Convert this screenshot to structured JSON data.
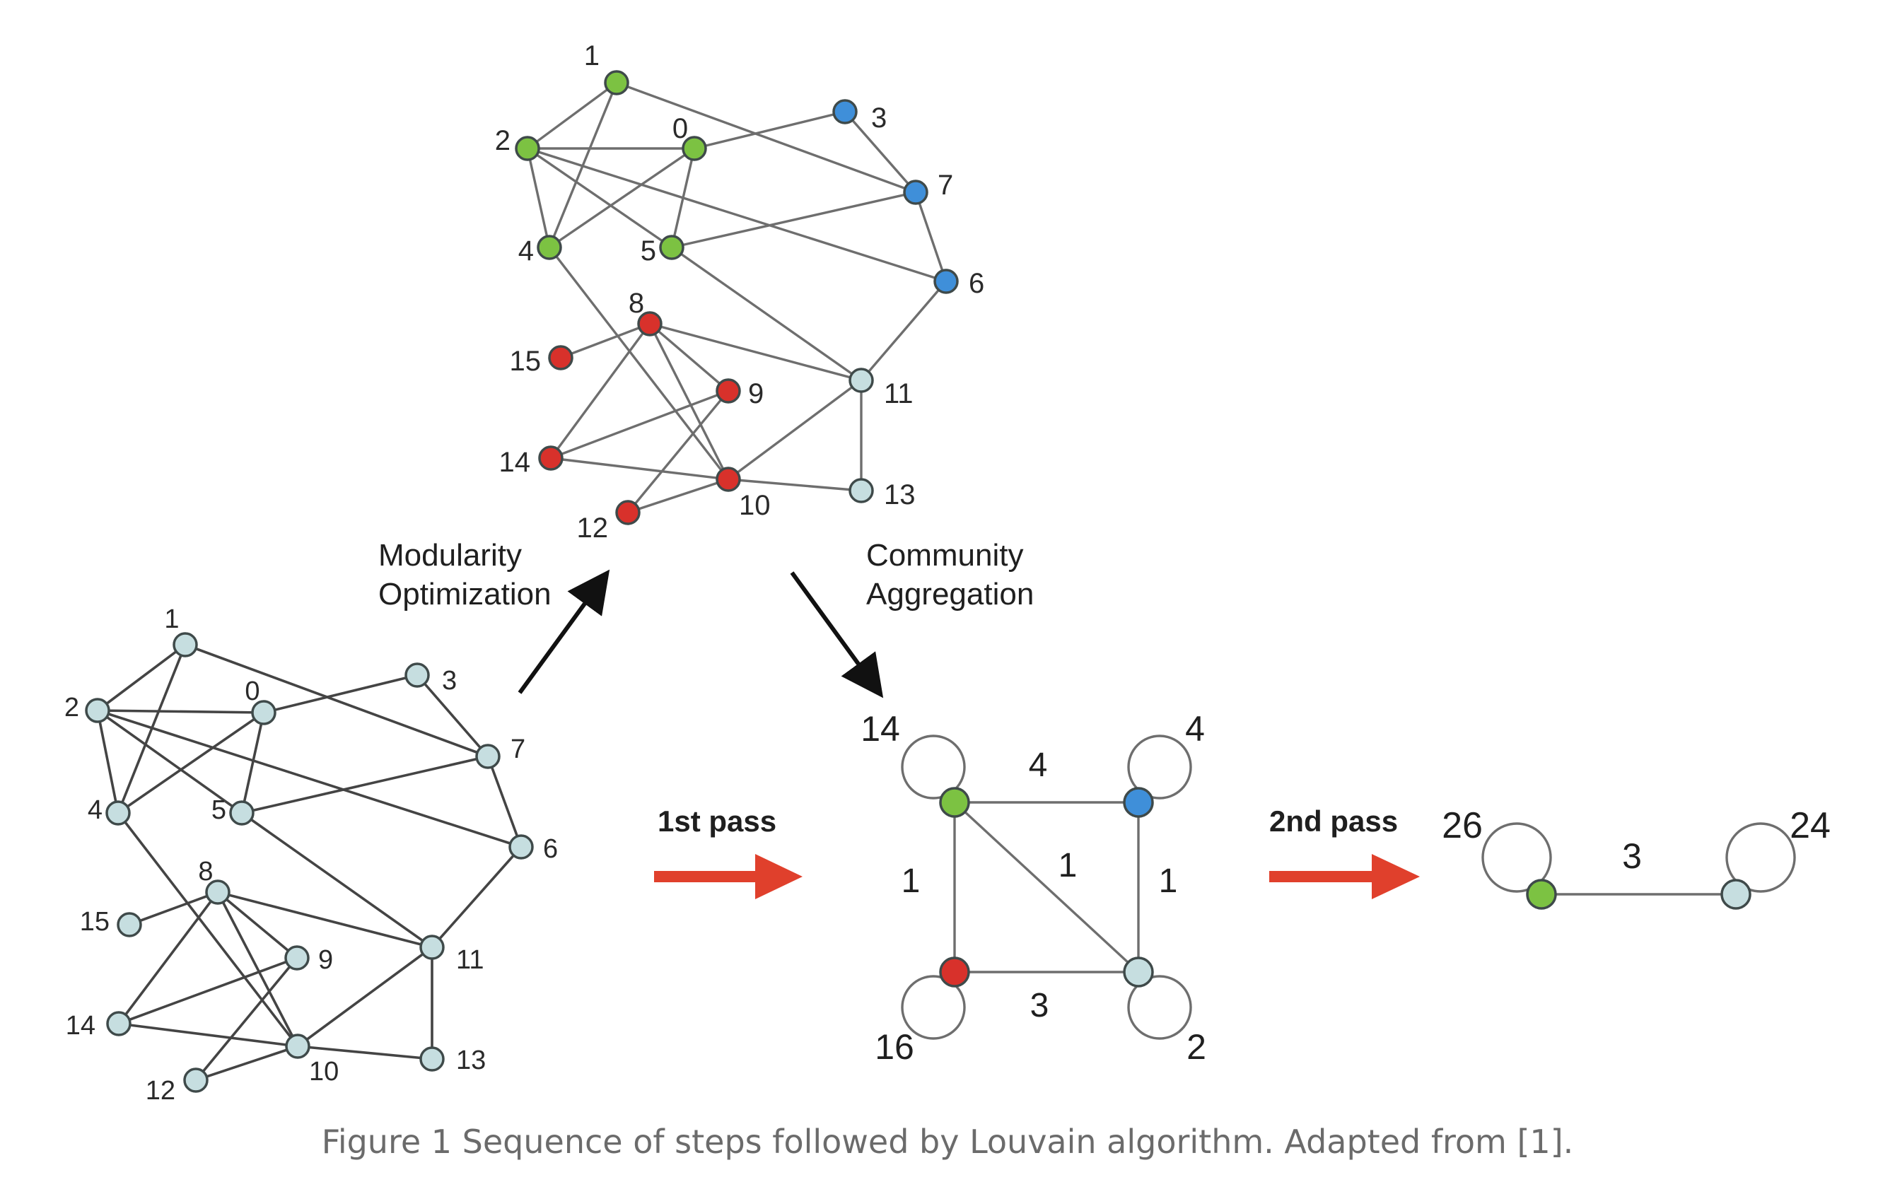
{
  "colors": {
    "green": "#7cc242",
    "blue": "#3f8fd9",
    "red": "#d8312b",
    "light": "#c6dee0",
    "arrow_red": "#e0402c",
    "arrow_dark": "#111111",
    "caption": "#6b6b6b"
  },
  "graph_nodes": [
    {
      "id": "0",
      "label": "0"
    },
    {
      "id": "1",
      "label": "1"
    },
    {
      "id": "2",
      "label": "2"
    },
    {
      "id": "3",
      "label": "3"
    },
    {
      "id": "4",
      "label": "4"
    },
    {
      "id": "5",
      "label": "5"
    },
    {
      "id": "6",
      "label": "6"
    },
    {
      "id": "7",
      "label": "7"
    },
    {
      "id": "8",
      "label": "8"
    },
    {
      "id": "9",
      "label": "9"
    },
    {
      "id": "10",
      "label": "10"
    },
    {
      "id": "11",
      "label": "11"
    },
    {
      "id": "12",
      "label": "12"
    },
    {
      "id": "13",
      "label": "13"
    },
    {
      "id": "14",
      "label": "14"
    },
    {
      "id": "15",
      "label": "15"
    }
  ],
  "graph_edges": [
    [
      "1",
      "2"
    ],
    [
      "1",
      "4"
    ],
    [
      "1",
      "7"
    ],
    [
      "2",
      "0"
    ],
    [
      "2",
      "4"
    ],
    [
      "2",
      "5"
    ],
    [
      "2",
      "6"
    ],
    [
      "0",
      "3"
    ],
    [
      "0",
      "4"
    ],
    [
      "0",
      "5"
    ],
    [
      "3",
      "7"
    ],
    [
      "7",
      "6"
    ],
    [
      "7",
      "5"
    ],
    [
      "4",
      "10"
    ],
    [
      "5",
      "11"
    ],
    [
      "6",
      "11"
    ],
    [
      "11",
      "13"
    ],
    [
      "11",
      "10"
    ],
    [
      "8",
      "15"
    ],
    [
      "8",
      "9"
    ],
    [
      "8",
      "10"
    ],
    [
      "8",
      "14"
    ],
    [
      "8",
      "11"
    ],
    [
      "9",
      "14"
    ],
    [
      "9",
      "12"
    ],
    [
      "14",
      "10"
    ],
    [
      "10",
      "12"
    ],
    [
      "10",
      "13"
    ]
  ],
  "communities": {
    "0": "green",
    "1": "green",
    "2": "green",
    "4": "green",
    "5": "green",
    "3": "blue",
    "6": "blue",
    "7": "blue",
    "8": "red",
    "9": "red",
    "10": "red",
    "12": "red",
    "14": "red",
    "15": "red",
    "11": "light",
    "13": "light"
  },
  "labels": {
    "modularity_line1": "Modularity",
    "modularity_line2": "Optimization",
    "community_line1": "Community",
    "community_line2": "Aggregation",
    "first_pass": "1st pass",
    "second_pass": "2nd pass"
  },
  "aggregated_graph": {
    "nodes": [
      {
        "id": "green",
        "self_loop": "14"
      },
      {
        "id": "blue",
        "self_loop": "4"
      },
      {
        "id": "red",
        "self_loop": "16"
      },
      {
        "id": "light",
        "self_loop": "2"
      }
    ],
    "edges": [
      {
        "from": "green",
        "to": "blue",
        "weight": "4"
      },
      {
        "from": "green",
        "to": "red",
        "weight": "1"
      },
      {
        "from": "green",
        "to": "light",
        "weight": "1"
      },
      {
        "from": "blue",
        "to": "light",
        "weight": "1"
      },
      {
        "from": "red",
        "to": "light",
        "weight": "3"
      }
    ]
  },
  "final_graph": {
    "nodes": [
      {
        "id": "green",
        "self_loop": "26"
      },
      {
        "id": "light",
        "self_loop": "24"
      }
    ],
    "edge_weight": "3"
  },
  "caption": "Figure 1 Sequence of steps followed by Louvain algorithm. Adapted from [1]."
}
